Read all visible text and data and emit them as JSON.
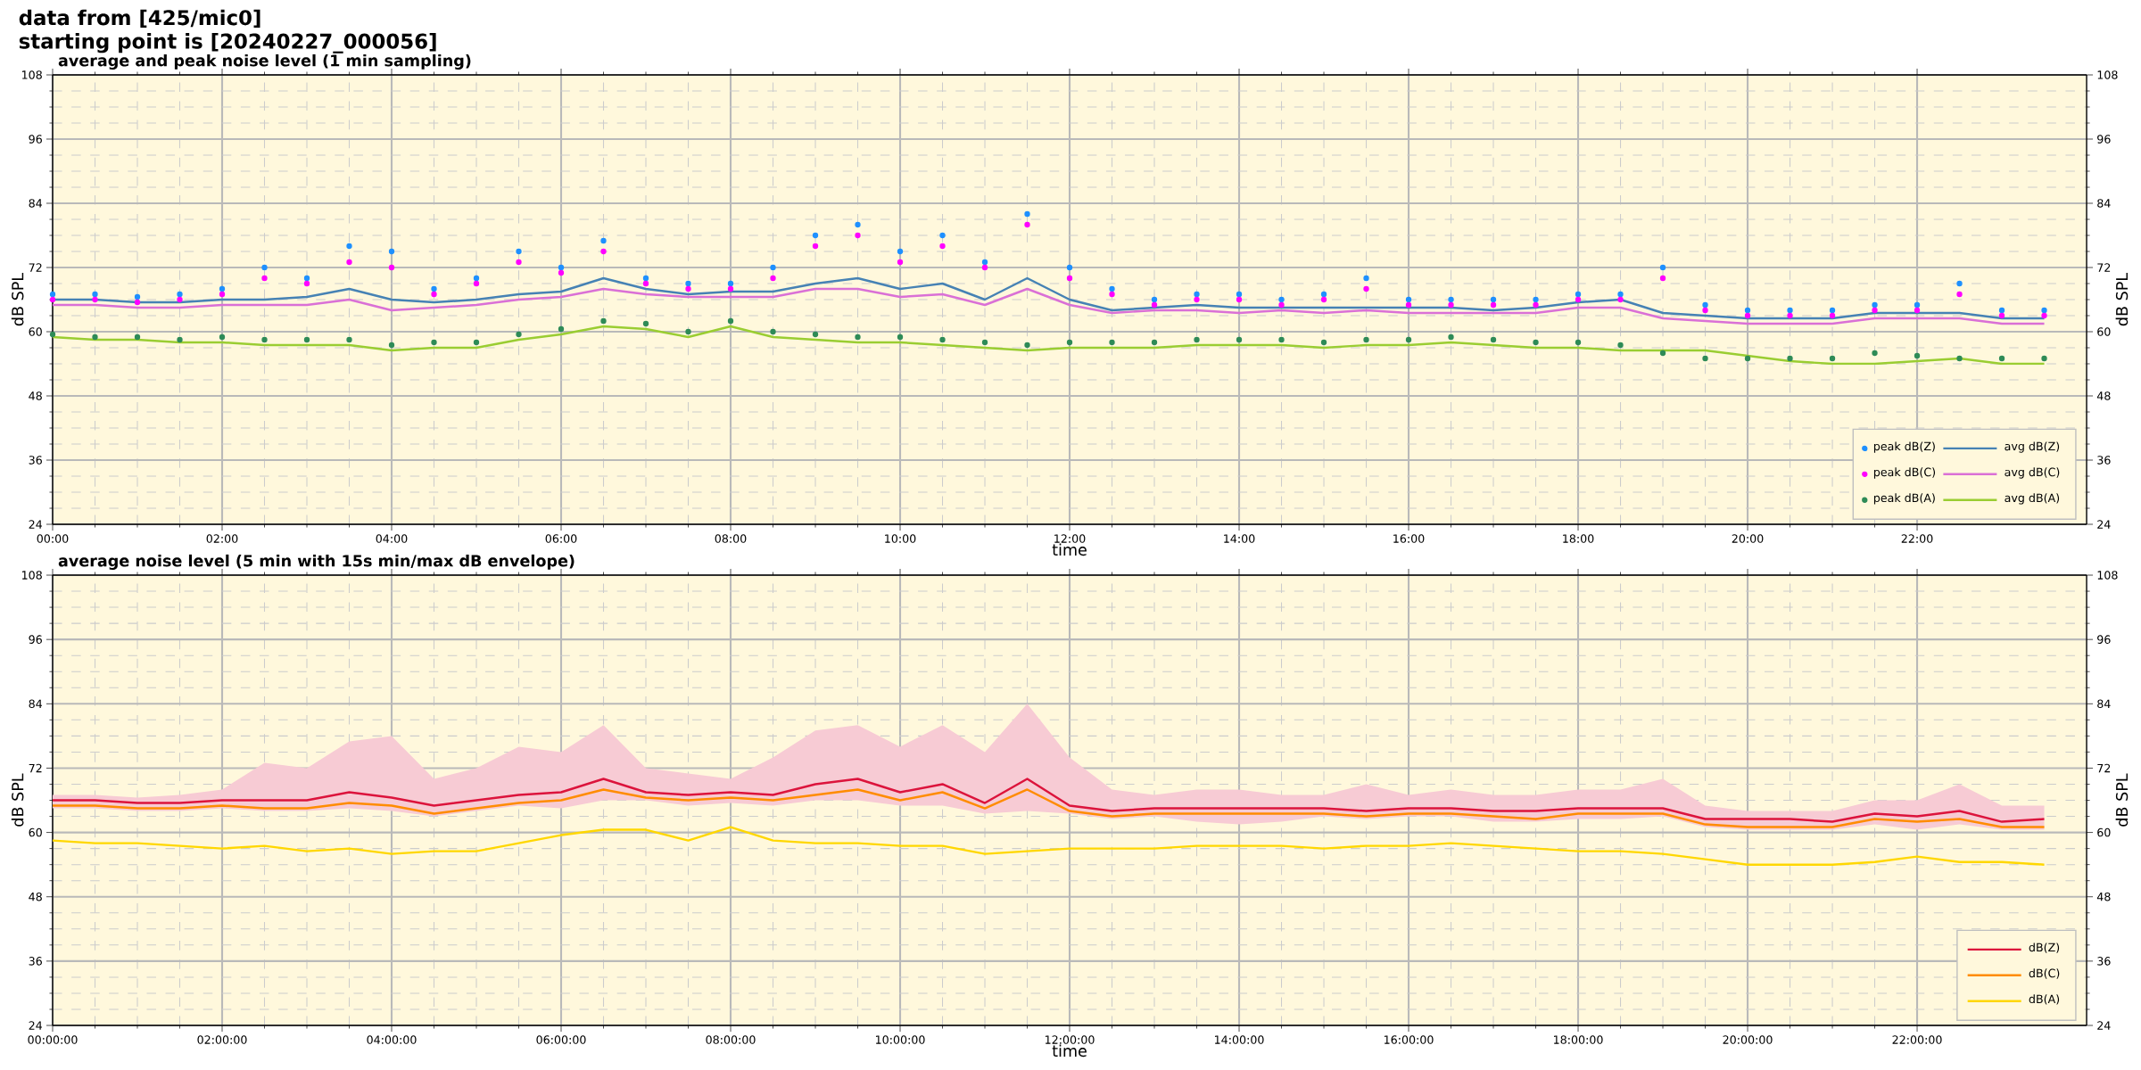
{
  "chart_data": [
    {
      "type": "line",
      "title": "average and peak noise level (1 min sampling)",
      "xlabel": "time",
      "ylabel": "dB SPL",
      "y2label": "dB SPL",
      "annotations": [
        "data from [425/mic0]",
        "starting point is [20240227_000056]"
      ],
      "x": [
        0,
        0.5,
        1,
        1.5,
        2,
        2.5,
        3,
        3.5,
        4,
        4.5,
        5,
        5.5,
        6,
        6.5,
        7,
        7.5,
        8,
        8.5,
        9,
        9.5,
        10,
        10.5,
        11,
        11.5,
        12,
        12.5,
        13,
        13.5,
        14,
        14.5,
        15,
        15.5,
        16,
        16.5,
        17,
        17.5,
        18,
        18.5,
        19,
        19.5,
        20,
        20.5,
        21,
        21.5,
        22,
        22.5,
        23,
        23.5
      ],
      "series": [
        {
          "name": "peak dB(Z)",
          "type": "scatter",
          "color": "#1e90ff",
          "values": [
            67,
            67,
            66.5,
            67,
            68,
            72,
            70,
            76,
            75,
            68,
            70,
            75,
            72,
            77,
            70,
            69,
            69,
            72,
            78,
            80,
            75,
            78,
            73,
            82,
            72,
            68,
            66,
            67,
            67,
            66,
            67,
            70,
            66,
            66,
            66,
            66,
            67,
            67,
            72,
            65,
            64,
            64,
            64,
            65,
            65,
            69,
            64,
            64
          ]
        },
        {
          "name": "avg dB(Z)",
          "type": "line",
          "color": "#4682b4",
          "values": [
            66,
            66,
            65.5,
            65.5,
            66,
            66,
            66.5,
            68,
            66,
            65.5,
            66,
            67,
            67.5,
            70,
            68,
            67,
            67.5,
            67.5,
            69,
            70,
            68,
            69,
            66,
            70,
            66,
            64,
            64.5,
            65,
            64.5,
            64.5,
            64.5,
            64.5,
            64.5,
            64.5,
            64,
            64.5,
            65.5,
            66,
            63.5,
            63,
            62.5,
            62.5,
            62.5,
            63.5,
            63.5,
            63.5,
            62.5,
            62.5
          ]
        },
        {
          "name": "peak dB(C)",
          "type": "scatter",
          "color": "#ff00ff",
          "values": [
            66,
            66,
            65.5,
            66,
            67,
            70,
            69,
            73,
            72,
            67,
            69,
            73,
            71,
            75,
            69,
            68,
            68,
            70,
            76,
            78,
            73,
            76,
            72,
            80,
            70,
            67,
            65,
            66,
            66,
            65,
            66,
            68,
            65,
            65,
            65,
            65,
            66,
            66,
            70,
            64,
            63,
            63,
            63,
            64,
            64,
            67,
            63,
            63
          ]
        },
        {
          "name": "avg dB(C)",
          "type": "line",
          "color": "#da70d6",
          "values": [
            65,
            65,
            64.5,
            64.5,
            65,
            65,
            65,
            66,
            64,
            64.5,
            65,
            66,
            66.5,
            68,
            67,
            66.5,
            66.5,
            66.5,
            68,
            68,
            66.5,
            67,
            65,
            68,
            65,
            63.5,
            64,
            64,
            63.5,
            64,
            63.5,
            64,
            63.5,
            63.5,
            63.5,
            63.5,
            64.5,
            64.5,
            62.5,
            62,
            61.5,
            61.5,
            61.5,
            62.5,
            62.5,
            62.5,
            61.5,
            61.5
          ]
        },
        {
          "name": "peak dB(A)",
          "type": "scatter",
          "color": "#2e8b57",
          "values": [
            59.5,
            59,
            59,
            58.5,
            59,
            58.5,
            58.5,
            58.5,
            57.5,
            58,
            58,
            59.5,
            60.5,
            62,
            61.5,
            60,
            62,
            60,
            59.5,
            59,
            59,
            58.5,
            58,
            57.5,
            58,
            58,
            58,
            58.5,
            58.5,
            58.5,
            58,
            58.5,
            58.5,
            59,
            58.5,
            58,
            58,
            57.5,
            56,
            55,
            55,
            55,
            55,
            56,
            55.5,
            55,
            55,
            55
          ]
        },
        {
          "name": "avg dB(A)",
          "type": "line",
          "color": "#9acd32",
          "values": [
            59,
            58.5,
            58.5,
            58,
            58,
            57.5,
            57.5,
            57.5,
            56.5,
            57,
            57,
            58.5,
            59.5,
            61,
            60.5,
            59,
            61,
            59,
            58.5,
            58,
            58,
            57.5,
            57,
            56.5,
            57,
            57,
            57,
            57.5,
            57.5,
            57.5,
            57,
            57.5,
            57.5,
            58,
            57.5,
            57,
            57,
            56.5,
            56.5,
            56.5,
            55.5,
            54.5,
            54,
            54,
            54.5,
            55,
            54,
            54
          ]
        }
      ],
      "xlim": [
        0,
        24
      ],
      "xticks": [
        {
          "value": 0,
          "label": "00:00"
        },
        {
          "value": 2,
          "label": "02:00"
        },
        {
          "value": 4,
          "label": "04:00"
        },
        {
          "value": 6,
          "label": "06:00"
        },
        {
          "value": 8,
          "label": "08:00"
        },
        {
          "value": 10,
          "label": "10:00"
        },
        {
          "value": 12,
          "label": "12:00"
        },
        {
          "value": 14,
          "label": "14:00"
        },
        {
          "value": 16,
          "label": "16:00"
        },
        {
          "value": 18,
          "label": "18:00"
        },
        {
          "value": 20,
          "label": "20:00"
        },
        {
          "value": 22,
          "label": "22:00"
        }
      ],
      "ylim": [
        24,
        108
      ],
      "yticks": [
        24,
        36,
        48,
        60,
        72,
        84,
        96,
        108
      ],
      "y2lim": [
        24,
        108
      ],
      "y2ticks": [
        24,
        36,
        48,
        60,
        72,
        84,
        96,
        108
      ],
      "grid": true,
      "legend": "bottom right"
    },
    {
      "type": "line",
      "title": "average noise level (5 min with 15s min/max dB envelope)",
      "xlabel": "time",
      "ylabel": "dB SPL",
      "y2label": "dB SPL",
      "x": [
        0,
        0.5,
        1,
        1.5,
        2,
        2.5,
        3,
        3.5,
        4,
        4.5,
        5,
        5.5,
        6,
        6.5,
        7,
        7.5,
        8,
        8.5,
        9,
        9.5,
        10,
        10.5,
        11,
        11.5,
        12,
        12.5,
        13,
        13.5,
        14,
        14.5,
        15,
        15.5,
        16,
        16.5,
        17,
        17.5,
        18,
        18.5,
        19,
        19.5,
        20,
        20.5,
        21,
        21.5,
        22,
        22.5,
        23,
        23.5
      ],
      "series": [
        {
          "name": "dB(Z)",
          "color": "#dc143c",
          "values": [
            66,
            66,
            65.5,
            65.5,
            66,
            66,
            66,
            67.5,
            66.5,
            65,
            66,
            67,
            67.5,
            70,
            67.5,
            67,
            67.5,
            67,
            69,
            70,
            67.5,
            69,
            65.5,
            70,
            65,
            64,
            64.5,
            64.5,
            64.5,
            64.5,
            64.5,
            64,
            64.5,
            64.5,
            64,
            64,
            64.5,
            64.5,
            64.5,
            62.5,
            62.5,
            62.5,
            62,
            63.5,
            63,
            64,
            62,
            62.5
          ],
          "upper": [
            67,
            67,
            66.5,
            67,
            68,
            73,
            72,
            77,
            78,
            70,
            72,
            76,
            75,
            80,
            72,
            71,
            70,
            74,
            79,
            80,
            76,
            80,
            75,
            84,
            74,
            68,
            67,
            68,
            68,
            67,
            67,
            69,
            67,
            68,
            67,
            67,
            68,
            68,
            70,
            65,
            64,
            64,
            64,
            66,
            66,
            69,
            65,
            65
          ],
          "lower": [
            64.5,
            64.5,
            64,
            64,
            64.5,
            64,
            64,
            64.5,
            64,
            63,
            64,
            65,
            64.5,
            66,
            66,
            65,
            65.5,
            65,
            66,
            66,
            65,
            65,
            63.5,
            64,
            63.5,
            62.5,
            63,
            62,
            61.5,
            62,
            63,
            62.5,
            63,
            63,
            62,
            62,
            62.5,
            62.5,
            63,
            61,
            60.5,
            60.5,
            60.5,
            61.5,
            60.5,
            61.5,
            60.5,
            60.5
          ]
        },
        {
          "name": "dB(C)",
          "color": "#ff8c00",
          "values": [
            65,
            65,
            64.5,
            64.5,
            65,
            64.5,
            64.5,
            65.5,
            65,
            63.5,
            64.5,
            65.5,
            66,
            68,
            66.5,
            66,
            66.5,
            66,
            67,
            68,
            66,
            67.5,
            64.5,
            68,
            64,
            63,
            63.5,
            63.5,
            63.5,
            63.5,
            63.5,
            63,
            63.5,
            63.5,
            63,
            62.5,
            63.5,
            63.5,
            63.5,
            61.5,
            61,
            61,
            61,
            62.5,
            62,
            62.5,
            61,
            61
          ]
        },
        {
          "name": "dB(A)",
          "color": "#ffd700",
          "values": [
            58.5,
            58,
            58,
            57.5,
            57,
            57.5,
            56.5,
            57,
            56,
            56.5,
            56.5,
            58,
            59.5,
            60.5,
            60.5,
            58.5,
            61,
            58.5,
            58,
            58,
            57.5,
            57.5,
            56,
            56.5,
            57,
            57,
            57,
            57.5,
            57.5,
            57.5,
            57,
            57.5,
            57.5,
            58,
            57.5,
            57,
            56.5,
            56.5,
            56,
            55,
            54,
            54,
            54,
            54.5,
            55.5,
            54.5,
            54.5,
            54
          ]
        }
      ],
      "xlim": [
        0,
        24
      ],
      "xticks": [
        {
          "value": 0,
          "label": "00:00:00"
        },
        {
          "value": 2,
          "label": "02:00:00"
        },
        {
          "value": 4,
          "label": "04:00:00"
        },
        {
          "value": 6,
          "label": "06:00:00"
        },
        {
          "value": 8,
          "label": "08:00:00"
        },
        {
          "value": 10,
          "label": "10:00:00"
        },
        {
          "value": 12,
          "label": "12:00:00"
        },
        {
          "value": 14,
          "label": "14:00:00"
        },
        {
          "value": 16,
          "label": "16:00:00"
        },
        {
          "value": 18,
          "label": "18:00:00"
        },
        {
          "value": 20,
          "label": "20:00:00"
        },
        {
          "value": 22,
          "label": "22:00:00"
        }
      ],
      "ylim": [
        24,
        108
      ],
      "yticks": [
        24,
        36,
        48,
        60,
        72,
        84,
        96,
        108
      ],
      "y2lim": [
        24,
        108
      ],
      "y2ticks": [
        24,
        36,
        48,
        60,
        72,
        84,
        96,
        108
      ],
      "grid": true,
      "legend": "bottom right"
    }
  ]
}
